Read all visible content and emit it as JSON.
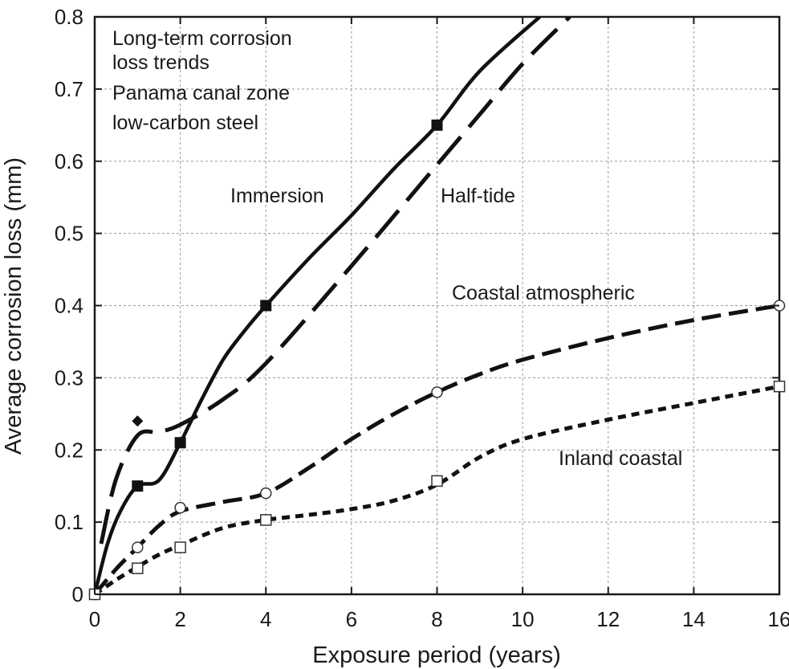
{
  "chart_data": {
    "type": "line",
    "title": "",
    "xlabel": "Exposure period (years)",
    "ylabel": "Average corrosion loss (mm)",
    "xlim": [
      0,
      16
    ],
    "ylim": [
      0,
      0.8
    ],
    "x_ticks": [
      0,
      2,
      4,
      6,
      8,
      10,
      12,
      14,
      16
    ],
    "y_ticks": [
      0,
      0.1,
      0.2,
      0.3,
      0.4,
      0.5,
      0.6,
      0.7,
      0.8
    ],
    "x_tick_labels": [
      "0",
      "2",
      "4",
      "6",
      "8",
      "10",
      "12",
      "14",
      "16"
    ],
    "y_tick_labels": [
      "0",
      "0.1",
      "0.2",
      "0.3",
      "0.4",
      "0.5",
      "0.6",
      "0.7",
      "0.8"
    ],
    "grid": true,
    "legend": "none",
    "annotations": {
      "caption_lines": [
        "Long-term corrosion",
        "loss trends",
        "Panama canal zone",
        "low-carbon steel"
      ],
      "immersion": "Immersion",
      "half_tide": "Half-tide",
      "coastal_atmospheric": "Coastal atmospheric",
      "inland_coastal": "Inland coastal"
    },
    "series": [
      {
        "name": "Immersion",
        "line": "solid",
        "marker": "filled-square",
        "points": [
          [
            1,
            0.15
          ],
          [
            2,
            0.21
          ],
          [
            4,
            0.4
          ],
          [
            8,
            0.65
          ]
        ],
        "curve": [
          [
            0,
            0
          ],
          [
            0.3,
            0.07
          ],
          [
            0.6,
            0.115
          ],
          [
            1,
            0.15
          ],
          [
            1.5,
            0.158
          ],
          [
            2,
            0.21
          ],
          [
            2.5,
            0.27
          ],
          [
            3,
            0.325
          ],
          [
            3.5,
            0.365
          ],
          [
            4,
            0.4
          ],
          [
            5,
            0.465
          ],
          [
            6,
            0.525
          ],
          [
            7,
            0.59
          ],
          [
            8,
            0.65
          ],
          [
            9,
            0.725
          ],
          [
            10.4,
            0.8
          ]
        ]
      },
      {
        "name": "Half-tide",
        "line": "long-dash",
        "marker": "filled-diamond",
        "points": [
          [
            1,
            0.24
          ]
        ],
        "curve": [
          [
            0.15,
            0.07
          ],
          [
            0.5,
            0.16
          ],
          [
            1,
            0.22
          ],
          [
            1.5,
            0.225
          ],
          [
            2,
            0.235
          ],
          [
            3,
            0.27
          ],
          [
            4,
            0.32
          ],
          [
            6,
            0.455
          ],
          [
            8,
            0.595
          ],
          [
            9,
            0.665
          ],
          [
            10,
            0.735
          ],
          [
            11.1,
            0.8
          ]
        ]
      },
      {
        "name": "Coastal atmospheric",
        "line": "dash",
        "marker": "open-circle",
        "points": [
          [
            0,
            0
          ],
          [
            1,
            0.065
          ],
          [
            2,
            0.12
          ],
          [
            4,
            0.14
          ],
          [
            8,
            0.28
          ],
          [
            16,
            0.4
          ]
        ],
        "curve": [
          [
            0,
            0
          ],
          [
            0.5,
            0.035
          ],
          [
            1,
            0.065
          ],
          [
            1.5,
            0.095
          ],
          [
            2,
            0.115
          ],
          [
            3,
            0.128
          ],
          [
            4,
            0.14
          ],
          [
            5,
            0.175
          ],
          [
            6,
            0.215
          ],
          [
            7,
            0.25
          ],
          [
            8,
            0.28
          ],
          [
            9,
            0.305
          ],
          [
            10,
            0.325
          ],
          [
            12,
            0.355
          ],
          [
            14,
            0.38
          ],
          [
            16,
            0.4
          ]
        ]
      },
      {
        "name": "Inland coastal",
        "line": "short-dash",
        "marker": "open-square",
        "points": [
          [
            0,
            0
          ],
          [
            1,
            0.036
          ],
          [
            2,
            0.065
          ],
          [
            4,
            0.103
          ],
          [
            8,
            0.157
          ],
          [
            16,
            0.288
          ]
        ],
        "curve": [
          [
            0,
            0
          ],
          [
            0.5,
            0.02
          ],
          [
            1,
            0.038
          ],
          [
            1.5,
            0.055
          ],
          [
            2,
            0.068
          ],
          [
            3,
            0.092
          ],
          [
            4,
            0.103
          ],
          [
            5,
            0.11
          ],
          [
            6,
            0.118
          ],
          [
            7,
            0.13
          ],
          [
            8,
            0.152
          ],
          [
            9,
            0.19
          ],
          [
            10,
            0.215
          ],
          [
            12,
            0.242
          ],
          [
            14,
            0.265
          ],
          [
            16,
            0.288
          ]
        ]
      }
    ]
  }
}
